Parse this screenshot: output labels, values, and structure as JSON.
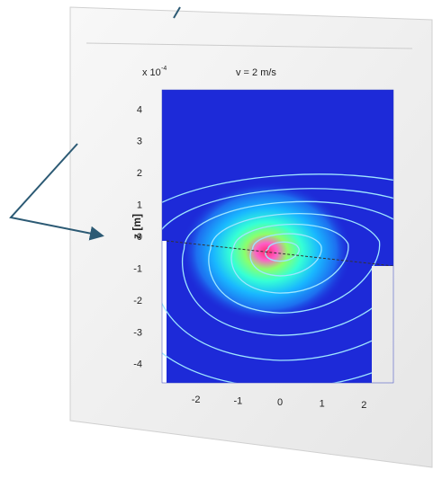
{
  "chart_data": {
    "type": "heatmap",
    "title": "v =  2 m/s",
    "ylabel": "z [m]",
    "xlabel": "",
    "y_multiplier": "x 10",
    "y_multiplier_exponent": "-4",
    "x_ticks": [
      "-2",
      "-1",
      "0",
      "1",
      "2"
    ],
    "y_ticks": [
      "4",
      "3",
      "2",
      "1",
      "0",
      "-1",
      "-2",
      "-3",
      "-4"
    ],
    "xlim": [
      -2.7,
      2.7
    ],
    "ylim": [
      -4.6,
      4.6
    ],
    "colormap": "jet",
    "background_color": "#1d2ad8",
    "hot_spot": {
      "x": 0.0,
      "y": -0.4
    },
    "contour_levels": 7,
    "grid": false
  },
  "colors": {
    "frame": "#f1f1f1",
    "arrow": "#2c5a74",
    "contour": "#9fe6ff"
  },
  "icons": [
    "arrow-pointer-icon"
  ]
}
